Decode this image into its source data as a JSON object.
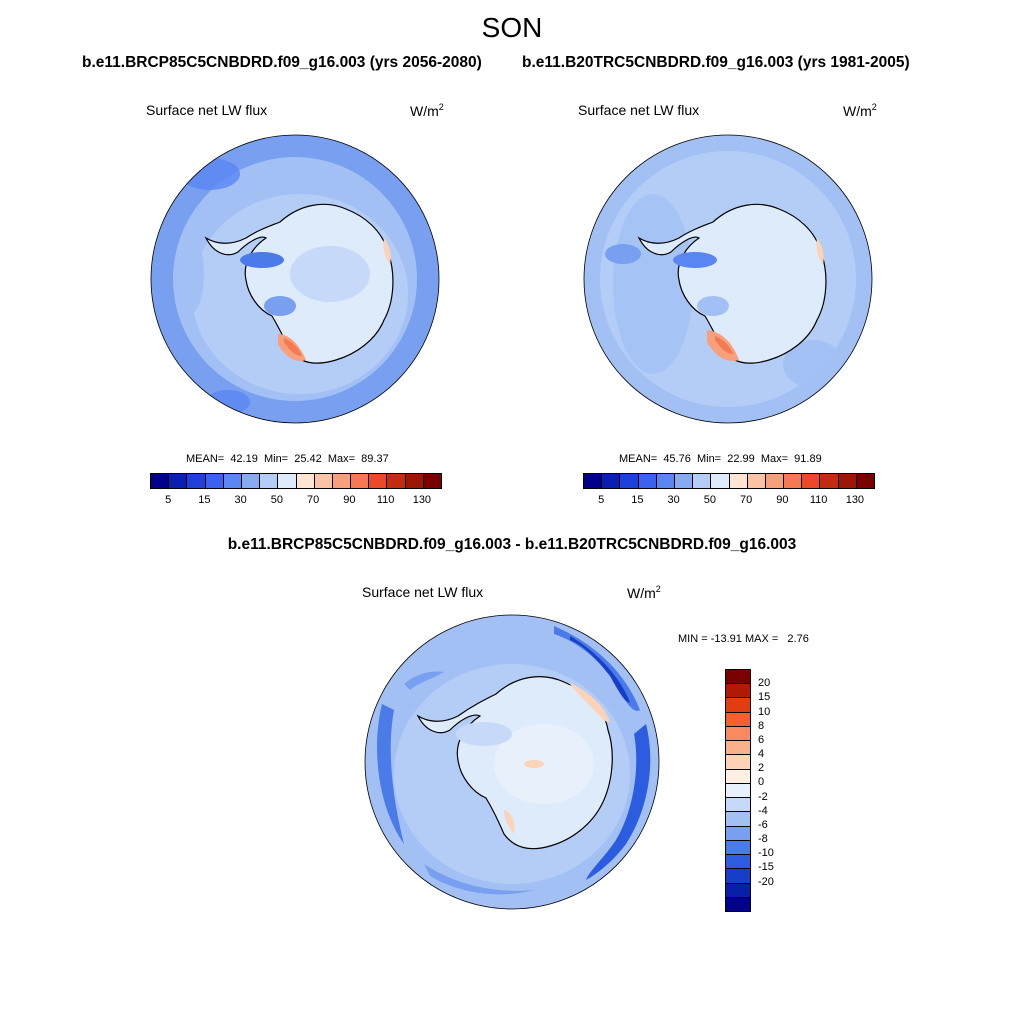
{
  "season": "SON",
  "panels": [
    {
      "case_title": "b.e11.BRCP85C5CNBDRD.f09_g16.003 (yrs 2056-2080)",
      "variable": "Surface net LW flux",
      "units": "W/m",
      "units_exp": "2",
      "stats": "MEAN=  42.19  Min=  25.42  Max=  89.37",
      "mean": 42.19,
      "min": 25.42,
      "max": 89.37
    },
    {
      "case_title": "b.e11.B20TRC5CNBDRD.f09_g16.003 (yrs 1981-2005)",
      "variable": "Surface net LW flux",
      "units": "W/m",
      "units_exp": "2",
      "stats": "MEAN=  45.76  Min=  22.99  Max=  91.89",
      "mean": 45.76,
      "min": 22.99,
      "max": 91.89
    }
  ],
  "diff_panel": {
    "case_title": "b.e11.BRCP85C5CNBDRD.f09_g16.003 - b.e11.B20TRC5CNBDRD.f09_g16.003",
    "variable": "Surface net LW flux",
    "units": "W/m",
    "units_exp": "2",
    "stats": "MIN = -13.91 MAX =   2.76",
    "min": -13.91,
    "max": 2.76
  },
  "abs_colorbar": {
    "colors": [
      "#00008a",
      "#0a1fb0",
      "#1e40d8",
      "#3a62ee",
      "#5a86f2",
      "#88aaf2",
      "#b4cdf7",
      "#deebfb",
      "#fde4d3",
      "#fbc3a6",
      "#f8a07c",
      "#f57a52",
      "#ea4b26",
      "#c22d10",
      "#9c1606",
      "#7a0000"
    ],
    "tick_labels": [
      "5",
      "15",
      "30",
      "50",
      "70",
      "90",
      "110",
      "130"
    ]
  },
  "diff_colorbar": {
    "colors": [
      "#7a0000",
      "#b01a04",
      "#e23c10",
      "#f65f2e",
      "#f88a5e",
      "#fab08a",
      "#fcd3b6",
      "#fdf0e3",
      "#e8f0fc",
      "#c6d9f8",
      "#a2c0f4",
      "#789ff0",
      "#4b7be8",
      "#2c5ce0",
      "#173ec8",
      "#0a1fa8",
      "#00008a"
    ],
    "tick_labels": [
      "20",
      "15",
      "10",
      "8",
      "6",
      "4",
      "2",
      "0",
      "-2",
      "-4",
      "-6",
      "-8",
      "-10",
      "-15",
      "-20"
    ]
  }
}
